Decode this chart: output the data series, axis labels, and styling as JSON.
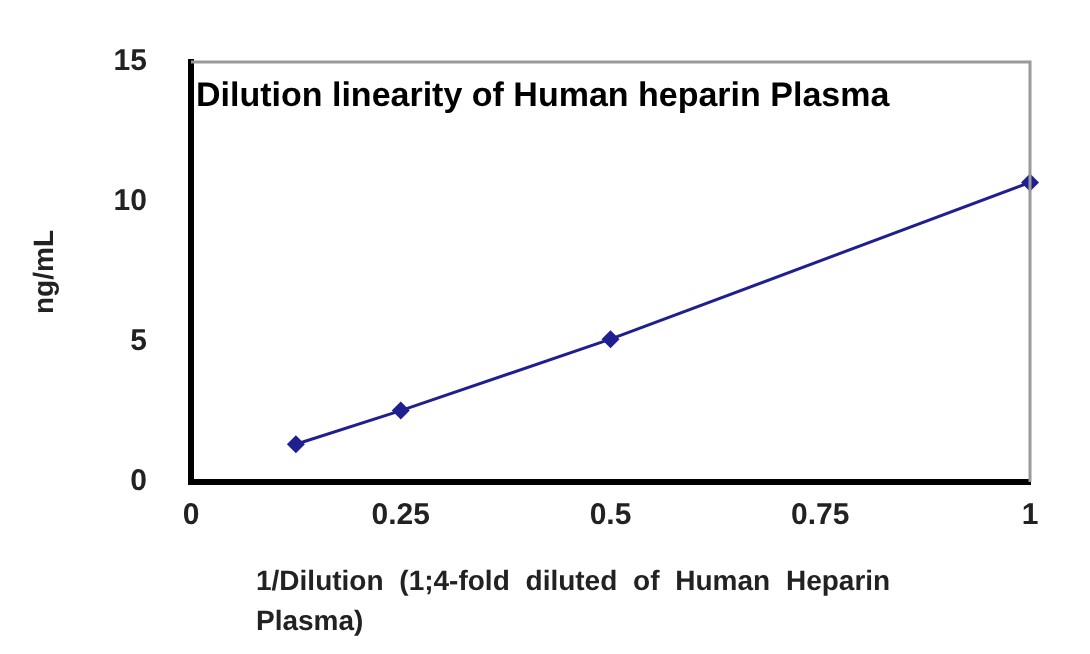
{
  "chart_data": {
    "type": "line",
    "title": "Dilution linearity of Human heparin Plasma",
    "xlabel": "1/Dilution (1;4-fold diluted of Human Heparin Plasma)",
    "ylabel": "ng/mL",
    "x": [
      0.125,
      0.25,
      0.5,
      1
    ],
    "series": [
      {
        "color": "#1f1f8f",
        "values": [
          1.35,
          2.55,
          5.1,
          10.7
        ]
      }
    ],
    "xlim": [
      0,
      1
    ],
    "xticks": [
      0,
      0.25,
      0.5,
      0.75,
      1
    ],
    "ylim": [
      0,
      15
    ],
    "yticks": [
      0,
      5,
      10,
      15
    ],
    "grid": false,
    "legend": false,
    "marker": "diamond",
    "line_style": "solid"
  }
}
